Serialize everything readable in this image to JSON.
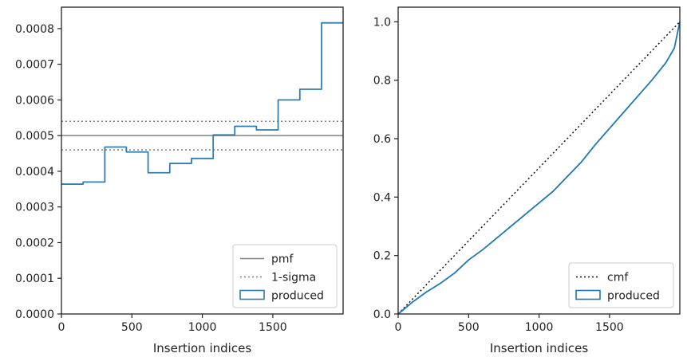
{
  "chart_data": [
    {
      "type": "histogram-step",
      "xlabel": "Insertion indices",
      "ylabel": "",
      "xlim": [
        0,
        1999
      ],
      "ylim": [
        0,
        0.00086
      ],
      "xticks": [
        0,
        500,
        1000,
        1500
      ],
      "yticks": [
        0.0,
        0.0001,
        0.0002,
        0.0003,
        0.0004,
        0.0005,
        0.0006,
        0.0007,
        0.0008
      ],
      "ytick_labels": [
        "0.0000",
        "0.0001",
        "0.0002",
        "0.0003",
        "0.0004",
        "0.0005",
        "0.0006",
        "0.0007",
        "0.0008"
      ],
      "grid": false,
      "legend_position": "bottom-right",
      "hlines": [
        {
          "name": "pmf",
          "y": 0.0005,
          "style": "solid",
          "color": "#808080"
        },
        {
          "name": "1-sigma",
          "y": 0.00054,
          "style": "dotted",
          "color": "#808080"
        },
        {
          "name": "",
          "y": 0.00046,
          "style": "dotted",
          "color": "#808080"
        }
      ],
      "series": [
        {
          "name": "produced",
          "color": "#2f7fb0",
          "bin_edges": [
            0,
            154,
            308,
            461,
            615,
            769,
            923,
            1077,
            1230,
            1384,
            1538,
            1692,
            1846,
            1999
          ],
          "values": [
            0.000364,
            0.00037,
            0.000468,
            0.000454,
            0.000396,
            0.000422,
            0.000436,
            0.000502,
            0.000526,
            0.000516,
            0.0006,
            0.00063,
            0.000816
          ]
        }
      ]
    },
    {
      "type": "line",
      "xlabel": "Insertion indices",
      "ylabel": "",
      "xlim": [
        0,
        1999
      ],
      "ylim": [
        0,
        1.05
      ],
      "xticks": [
        0,
        500,
        1000,
        1500
      ],
      "yticks": [
        0.0,
        0.2,
        0.4,
        0.6,
        0.8,
        1.0
      ],
      "ytick_labels": [
        "0.0",
        "0.2",
        "0.4",
        "0.6",
        "0.8",
        "1.0"
      ],
      "grid": false,
      "legend_position": "bottom-right",
      "series": [
        {
          "name": "cmf",
          "style": "dotted",
          "color": "#111111",
          "x": [
            0,
            1999
          ],
          "y": [
            0,
            1.0
          ]
        },
        {
          "name": "produced",
          "style": "solid",
          "color": "#1f77b4",
          "x": [
            0,
            100,
            200,
            300,
            400,
            500,
            600,
            700,
            800,
            900,
            1000,
            1100,
            1200,
            1300,
            1400,
            1500,
            1600,
            1700,
            1800,
            1900,
            1960,
            1999
          ],
          "y": [
            0,
            0.04,
            0.075,
            0.105,
            0.14,
            0.185,
            0.22,
            0.26,
            0.3,
            0.34,
            0.38,
            0.42,
            0.47,
            0.52,
            0.58,
            0.635,
            0.69,
            0.745,
            0.8,
            0.86,
            0.91,
            1.0
          ]
        }
      ]
    }
  ]
}
